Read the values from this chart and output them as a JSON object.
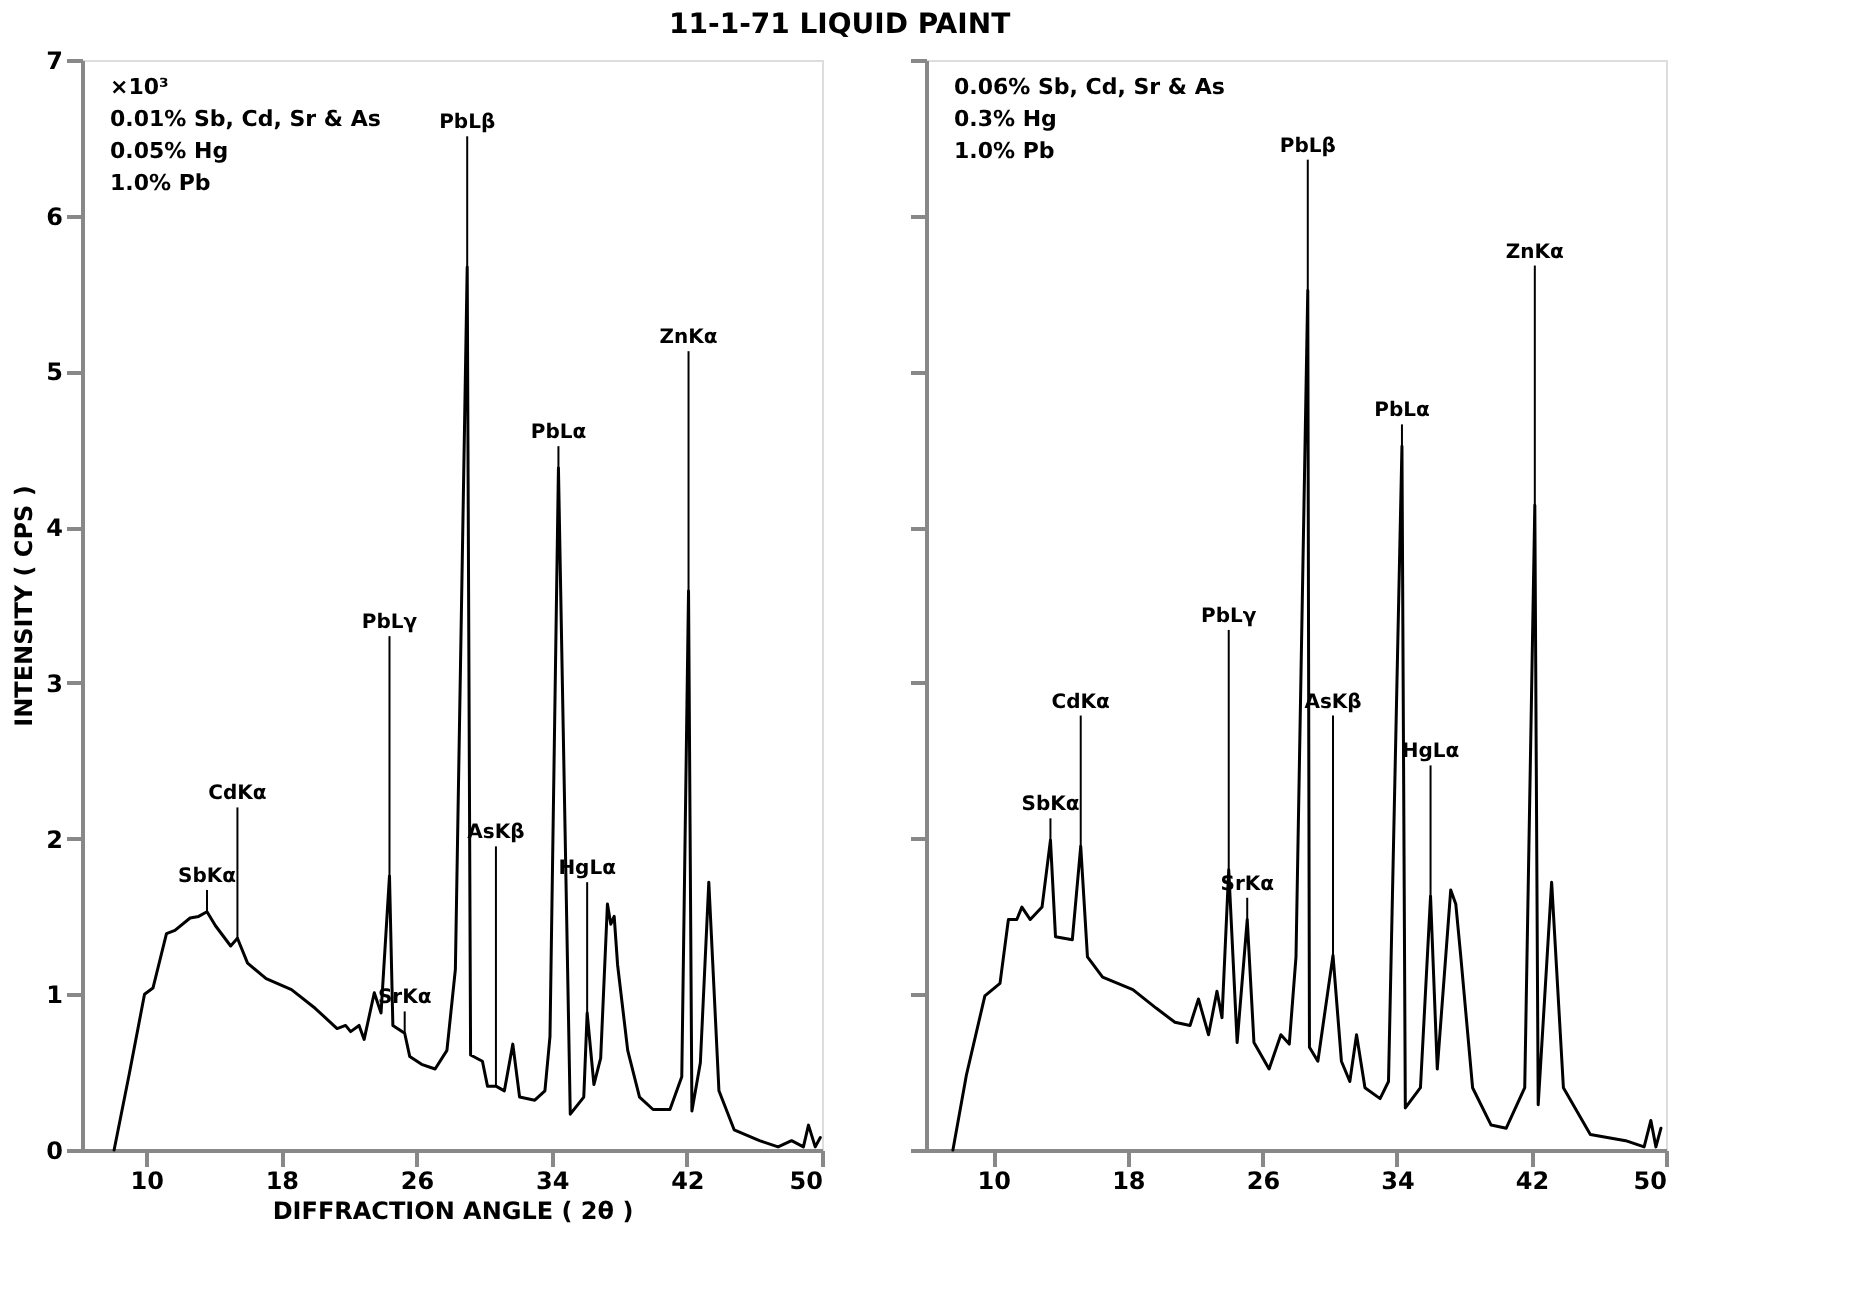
{
  "chart_data": [
    {
      "type": "line",
      "title": "11-1-71   LIQUID   PAINT",
      "ylabel": "INTENSITY   ( CPS )",
      "xlabel": "DIFFRACTION   ANGLE   ( 2θ )",
      "xlim": [
        6.2,
        50
      ],
      "xticks": [
        10,
        18,
        26,
        34,
        42,
        50
      ],
      "ylim": [
        0,
        7
      ],
      "yticks": [
        0,
        1,
        2,
        3,
        4,
        5,
        6,
        7
      ],
      "grid": false,
      "marker": "none",
      "line_style": "solid",
      "x": [
        8.1,
        9.0,
        9.9,
        10.4,
        11.2,
        11.7,
        12.6,
        13.1,
        13.6,
        14.1,
        15.0,
        15.4,
        16.0,
        17.1,
        18.6,
        20.0,
        21.3,
        21.8,
        22.1,
        22.6,
        22.9,
        23.5,
        23.9,
        24.4,
        24.6,
        25.3,
        25.6,
        26.3,
        27.1,
        27.8,
        28.3,
        29.0,
        29.2,
        29.9,
        30.2,
        30.7,
        31.2,
        31.7,
        32.1,
        33.0,
        33.6,
        33.9,
        34.4,
        35.1,
        35.9,
        36.1,
        36.5,
        36.9,
        37.3,
        37.5,
        37.7,
        37.9,
        38.5,
        39.2,
        40.0,
        41.0,
        41.7,
        42.1,
        42.3,
        42.8,
        43.3,
        43.9,
        44.8,
        46.3,
        47.4,
        48.2,
        48.9,
        49.2,
        49.6,
        49.9
      ],
      "series": [
        {
          "color": "#000000",
          "values": [
            0,
            0.49,
            1.0,
            1.04,
            1.39,
            1.41,
            1.49,
            1.5,
            1.53,
            1.44,
            1.31,
            1.36,
            1.2,
            1.1,
            1.03,
            0.91,
            0.78,
            0.8,
            0.76,
            0.8,
            0.71,
            1.01,
            0.88,
            1.76,
            0.8,
            0.75,
            0.6,
            0.55,
            0.52,
            0.64,
            1.16,
            5.67,
            0.61,
            0.57,
            0.41,
            0.41,
            0.38,
            0.68,
            0.34,
            0.32,
            0.38,
            0.73,
            4.38,
            0.23,
            0.34,
            0.88,
            0.42,
            0.59,
            1.58,
            1.45,
            1.5,
            1.19,
            0.64,
            0.34,
            0.26,
            0.26,
            0.47,
            3.59,
            0.25,
            0.56,
            1.72,
            0.38,
            0.13,
            0.06,
            0.02,
            0.06,
            0.02,
            0.16,
            0.02,
            0.08
          ]
        }
      ],
      "annotations": [
        "×10³",
        "0.01%  Sb, Cd, Sr & As",
        "0.05%  Hg",
        "1.0%   Pb",
        {
          "text": "SbKα",
          "x": 13.6,
          "y": 1.53
        },
        {
          "text": "CdKα",
          "x": 15.4,
          "y": 1.36
        },
        {
          "text": "PbLγ",
          "x": 24.4,
          "y": 1.76
        },
        {
          "text": "SrKα",
          "x": 25.3,
          "y": 0.75
        },
        {
          "text": "PbLβ",
          "x": 29.0,
          "y": 5.67
        },
        {
          "text": "AsKβ",
          "x": 30.7,
          "y": 0.41
        },
        {
          "text": "PbLα",
          "x": 34.4,
          "y": 4.38
        },
        {
          "text": "HgLα",
          "x": 36.1,
          "y": 0.88
        },
        {
          "text": "ZnKα",
          "x": 42.1,
          "y": 3.59
        }
      ]
    },
    {
      "type": "line",
      "tick_labels": "x",
      "xlim": [
        6,
        50
      ],
      "xticks": [
        10,
        18,
        26,
        34,
        42,
        50
      ],
      "ylim": [
        0,
        7
      ],
      "yticks": [
        0,
        1,
        2,
        3,
        4,
        5,
        6,
        7
      ],
      "grid": false,
      "marker": "none",
      "line_style": "solid",
      "x": [
        7.6,
        8.4,
        9.5,
        10.4,
        10.9,
        11.4,
        11.7,
        12.2,
        12.9,
        13.4,
        13.7,
        14.7,
        15.2,
        15.6,
        16.5,
        18.3,
        19.7,
        20.8,
        21.7,
        22.2,
        22.8,
        23.3,
        23.6,
        24.0,
        24.5,
        25.1,
        25.5,
        26.4,
        27.1,
        27.6,
        28.0,
        28.7,
        28.8,
        29.3,
        30.2,
        30.7,
        31.2,
        31.6,
        32.1,
        33.0,
        33.5,
        34.3,
        34.5,
        35.4,
        36.0,
        36.4,
        37.2,
        37.5,
        37.8,
        38.5,
        39.6,
        40.5,
        41.6,
        42.2,
        42.4,
        43.2,
        43.9,
        45.5,
        47.6,
        48.7,
        49.1,
        49.4,
        49.7
      ],
      "series": [
        {
          "color": "#000000",
          "values": [
            0,
            0.48,
            0.99,
            1.07,
            1.48,
            1.48,
            1.56,
            1.48,
            1.56,
            1.99,
            1.37,
            1.35,
            1.95,
            1.24,
            1.11,
            1.03,
            0.91,
            0.82,
            0.8,
            0.97,
            0.74,
            1.02,
            0.85,
            1.8,
            0.69,
            1.48,
            0.69,
            0.52,
            0.74,
            0.68,
            1.24,
            5.52,
            0.66,
            0.57,
            1.25,
            0.57,
            0.44,
            0.74,
            0.4,
            0.33,
            0.44,
            4.52,
            0.27,
            0.4,
            1.63,
            0.52,
            1.67,
            1.58,
            1.24,
            0.4,
            0.16,
            0.14,
            0.4,
            4.14,
            0.29,
            1.72,
            0.4,
            0.1,
            0.06,
            0.02,
            0.19,
            0.02,
            0.14
          ]
        }
      ],
      "annotations": [
        "0.06%  Sb, Cd, Sr & As",
        "0.3%    Hg",
        "1.0%    Pb",
        {
          "text": "SbKα",
          "x": 13.4,
          "y": 1.99
        },
        {
          "text": "CdKα",
          "x": 15.2,
          "y": 1.95
        },
        {
          "text": "PbLγ",
          "x": 24.0,
          "y": 1.8
        },
        {
          "text": "SrKα",
          "x": 25.1,
          "y": 1.48
        },
        {
          "text": "PbLβ",
          "x": 28.7,
          "y": 5.52
        },
        {
          "text": "AsKβ",
          "x": 30.2,
          "y": 1.25
        },
        {
          "text": "PbLα",
          "x": 34.3,
          "y": 4.52
        },
        {
          "text": "HgLα",
          "x": 36.0,
          "y": 1.63
        },
        {
          "text": "ZnKα",
          "x": 42.2,
          "y": 4.14
        }
      ]
    }
  ]
}
